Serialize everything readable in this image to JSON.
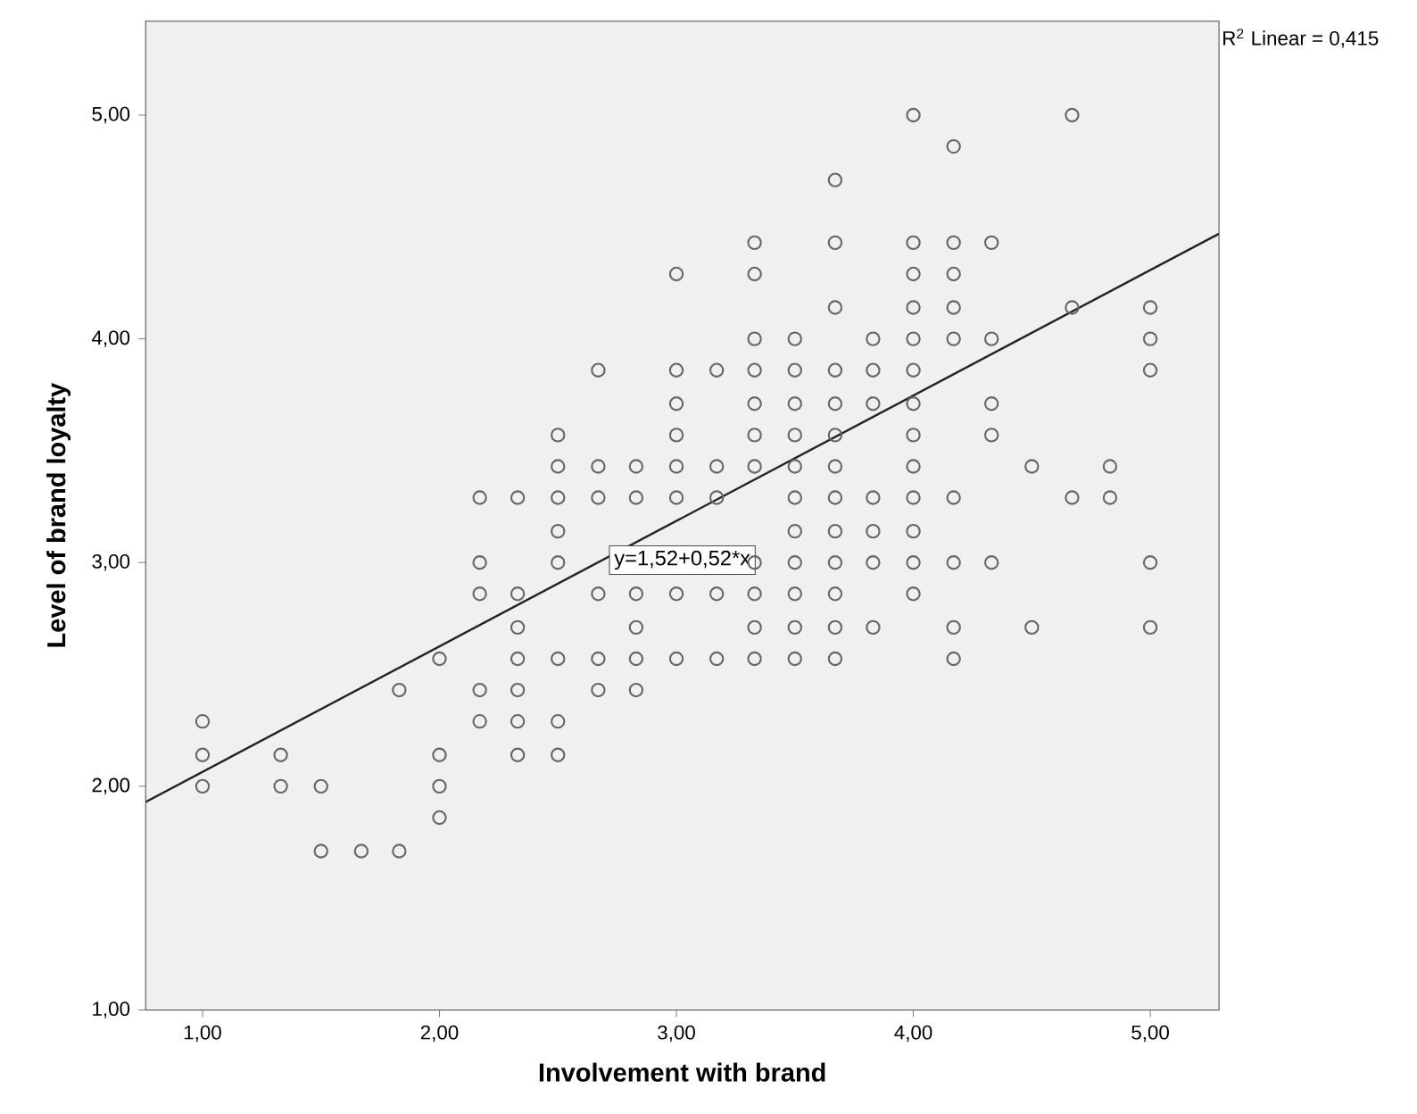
{
  "chart_data": {
    "type": "scatter",
    "xlabel": "Involvement with brand",
    "ylabel": "Level of brand loyalty",
    "xlim": [
      0.76,
      5.29
    ],
    "ylim": [
      1,
      5.42
    ],
    "xticks": [
      {
        "value": 1,
        "label": "1,00"
      },
      {
        "value": 2,
        "label": "2,00"
      },
      {
        "value": 3,
        "label": "3,00"
      },
      {
        "value": 4,
        "label": "4,00"
      },
      {
        "value": 5,
        "label": "5,00"
      }
    ],
    "yticks": [
      {
        "value": 1,
        "label": "1,00"
      },
      {
        "value": 2,
        "label": "2,00"
      },
      {
        "value": 3,
        "label": "3,00"
      },
      {
        "value": 4,
        "label": "4,00"
      },
      {
        "value": 5,
        "label": "5,00"
      }
    ],
    "grid": false,
    "series": [
      {
        "marker": "circle",
        "color": "#666666",
        "x": [
          1,
          1,
          1,
          1.33,
          1.33,
          1.5,
          1.5,
          1.67,
          1.83,
          1.83,
          2,
          2,
          2,
          2,
          2.17,
          2.17,
          2.17,
          2.17,
          2.17,
          2.33,
          2.33,
          2.33,
          2.33,
          2.33,
          2.33,
          2.33,
          2.5,
          2.5,
          2.5,
          2.5,
          2.5,
          2.5,
          2.5,
          2.5,
          2.67,
          2.67,
          2.67,
          2.67,
          2.67,
          2.67,
          2.83,
          2.83,
          2.83,
          2.83,
          2.83,
          2.83,
          3,
          3,
          3,
          3,
          3,
          3,
          3,
          3,
          3.17,
          3.17,
          3.17,
          3.17,
          3.17,
          3.33,
          3.33,
          3.33,
          3.33,
          3.33,
          3.33,
          3.33,
          3.33,
          3.33,
          3.33,
          3.33,
          3.5,
          3.5,
          3.5,
          3.5,
          3.5,
          3.5,
          3.5,
          3.5,
          3.5,
          3.5,
          3.5,
          3.67,
          3.67,
          3.67,
          3.67,
          3.67,
          3.67,
          3.67,
          3.67,
          3.67,
          3.67,
          3.67,
          3.67,
          3.67,
          3.83,
          3.83,
          3.83,
          3.83,
          3.83,
          3.83,
          3.83,
          4,
          4,
          4,
          4,
          4,
          4,
          4,
          4,
          4,
          4,
          4,
          4,
          4,
          4.17,
          4.17,
          4.17,
          4.17,
          4.17,
          4.17,
          4.17,
          4.17,
          4.17,
          4.33,
          4.33,
          4.33,
          4.33,
          4.33,
          4.5,
          4.5,
          4.67,
          4.67,
          4.67,
          4.83,
          4.83,
          5,
          5,
          5,
          5,
          5
        ],
        "values": [
          2.29,
          2.14,
          2,
          2.14,
          2,
          2,
          1.71,
          1.71,
          2.43,
          1.71,
          2.57,
          2.14,
          2,
          1.86,
          3.29,
          3,
          2.86,
          2.43,
          2.29,
          3.29,
          2.86,
          2.71,
          2.57,
          2.43,
          2.29,
          2.14,
          3.57,
          3.43,
          3.29,
          3.14,
          3,
          2.57,
          2.29,
          2.14,
          3.86,
          3.43,
          3.29,
          2.86,
          2.57,
          2.43,
          3.43,
          3.29,
          2.86,
          2.71,
          2.57,
          2.43,
          4.29,
          3.86,
          3.71,
          3.57,
          3.43,
          3.29,
          2.86,
          2.57,
          3.86,
          3.43,
          3.29,
          2.86,
          2.57,
          4.43,
          4.29,
          4,
          3.86,
          3.71,
          3.57,
          3.43,
          3,
          2.86,
          2.71,
          2.57,
          4,
          3.86,
          3.71,
          3.57,
          3.43,
          3.29,
          3.14,
          3,
          2.86,
          2.71,
          2.57,
          4.71,
          4.43,
          4.14,
          3.86,
          3.71,
          3.57,
          3.43,
          3.29,
          3.14,
          3,
          2.86,
          2.71,
          2.57,
          4,
          3.86,
          3.71,
          3.29,
          3.14,
          3,
          2.71,
          5,
          4.43,
          4.29,
          4.14,
          4,
          3.86,
          3.71,
          3.57,
          3.43,
          3.29,
          3.14,
          3,
          2.86,
          4.86,
          4.43,
          4.29,
          4.14,
          4,
          3.29,
          3,
          2.71,
          2.57,
          4.43,
          4,
          3.71,
          3.57,
          3,
          3.43,
          2.71,
          5,
          4.14,
          3.29,
          3.43,
          3.29,
          4.14,
          4,
          3.86,
          3,
          2.71
        ]
      },
      {
        "type": "line",
        "marker": "none",
        "color": "#222222",
        "x": [
          0.76,
          5.29
        ],
        "values": [
          1.93,
          4.47
        ]
      }
    ],
    "annotations": [
      "R$^{2}$ Linear = 0,415",
      "y=1,52+0,52*x"
    ]
  }
}
